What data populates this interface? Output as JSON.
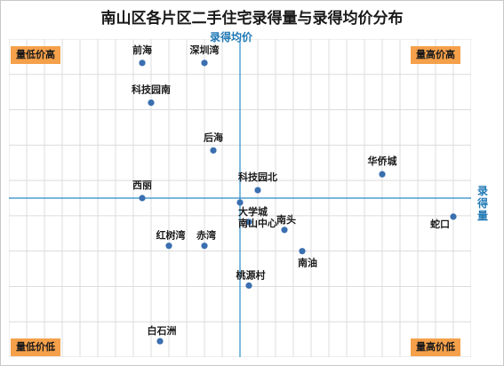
{
  "title": "南山区各片区二手住宅录得量与录得均价分布",
  "quadrants": {
    "top_left": "量低价高",
    "top_right": "量高价高",
    "bottom_left": "量低价低",
    "bottom_right": "量高价低"
  },
  "colors": {
    "point": "#3a6fb0",
    "axis": "#2a8cc8",
    "grid": "#dcdcdc",
    "quadrant_bg": "#f5a04a",
    "axis_title": "#1e78b4"
  },
  "chart_data": {
    "type": "scatter",
    "title": "南山区各片区二手住宅录得量与录得均价分布",
    "xlabel": "录得量",
    "ylabel": "录得均价",
    "xlim": [
      -26,
      26
    ],
    "ylim": [
      -18,
      18
    ],
    "grid": true,
    "points": [
      {
        "name": "前海",
        "x": -11,
        "y": 15.3
      },
      {
        "name": "深圳湾",
        "x": -4,
        "y": 15.3
      },
      {
        "name": "科技园南",
        "x": -10,
        "y": 10.8
      },
      {
        "name": "后海",
        "x": -3,
        "y": 5.4
      },
      {
        "name": "华侨城",
        "x": 16,
        "y": 2.7
      },
      {
        "name": "科技园北",
        "x": 2,
        "y": 0.9
      },
      {
        "name": "西丽",
        "x": -11,
        "y": 0
      },
      {
        "name": "大学城",
        "x": 0,
        "y": -0.5
      },
      {
        "name": "蛇口",
        "x": 24,
        "y": -2.1
      },
      {
        "name": "南山中心",
        "x": 1,
        "y": -2.7
      },
      {
        "name": "南头",
        "x": 5,
        "y": -3.6
      },
      {
        "name": "红树湾",
        "x": -8,
        "y": -5.4
      },
      {
        "name": "赤湾",
        "x": -4,
        "y": -5.4
      },
      {
        "name": "南油",
        "x": 7,
        "y": -6.0
      },
      {
        "name": "桃源村",
        "x": 1,
        "y": -9.9
      },
      {
        "name": "白石洲",
        "x": -9,
        "y": -16.2
      }
    ]
  }
}
